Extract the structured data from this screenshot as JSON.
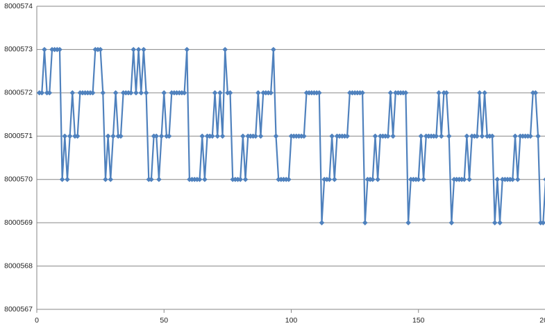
{
  "chart_data": {
    "type": "line",
    "x": [
      1,
      2,
      3,
      4,
      5,
      6,
      7,
      8,
      9,
      10,
      11,
      12,
      13,
      14,
      15,
      16,
      17,
      18,
      19,
      20,
      21,
      22,
      23,
      24,
      25,
      26,
      27,
      28,
      29,
      30,
      31,
      32,
      33,
      34,
      35,
      36,
      37,
      38,
      39,
      40,
      41,
      42,
      43,
      44,
      45,
      46,
      47,
      48,
      49,
      50,
      51,
      52,
      53,
      54,
      55,
      56,
      57,
      58,
      59,
      60,
      61,
      62,
      63,
      64,
      65,
      66,
      67,
      68,
      69,
      70,
      71,
      72,
      73,
      74,
      75,
      76,
      77,
      78,
      79,
      80,
      81,
      82,
      83,
      84,
      85,
      86,
      87,
      88,
      89,
      90,
      91,
      92,
      93,
      94,
      95,
      96,
      97,
      98,
      99,
      100,
      101,
      102,
      103,
      104,
      105,
      106,
      107,
      108,
      109,
      110,
      111,
      112,
      113,
      114,
      115,
      116,
      117,
      118,
      119,
      120,
      121,
      122,
      123,
      124,
      125,
      126,
      127,
      128,
      129,
      130,
      131,
      132,
      133,
      134,
      135,
      136,
      137,
      138,
      139,
      140,
      141,
      142,
      143,
      144,
      145,
      146,
      147,
      148,
      149,
      150,
      151,
      152,
      153,
      154,
      155,
      156,
      157,
      158,
      159,
      160,
      161,
      162,
      163,
      164,
      165,
      166,
      167,
      168,
      169,
      170,
      171,
      172,
      173,
      174,
      175,
      176,
      177,
      178,
      179,
      180,
      181,
      182,
      183,
      184,
      185,
      186,
      187,
      188,
      189,
      190,
      191,
      192,
      193,
      194,
      195,
      196,
      197,
      198,
      199,
      200
    ],
    "series": [
      {
        "color": "#4f81bd",
        "values": [
          8000572,
          8000572,
          8000573,
          8000572,
          8000572,
          8000573,
          8000573,
          8000573,
          8000573,
          8000570,
          8000571,
          8000570,
          8000571,
          8000572,
          8000571,
          8000571,
          8000572,
          8000572,
          8000572,
          8000572,
          8000572,
          8000572,
          8000573,
          8000573,
          8000573,
          8000572,
          8000570,
          8000571,
          8000570,
          8000571,
          8000572,
          8000571,
          8000571,
          8000572,
          8000572,
          8000572,
          8000572,
          8000573,
          8000572,
          8000573,
          8000572,
          8000573,
          8000572,
          8000570,
          8000570,
          8000571,
          8000571,
          8000570,
          8000571,
          8000572,
          8000571,
          8000571,
          8000572,
          8000572,
          8000572,
          8000572,
          8000572,
          8000572,
          8000573,
          8000570,
          8000570,
          8000570,
          8000570,
          8000570,
          8000571,
          8000570,
          8000571,
          8000571,
          8000571,
          8000572,
          8000571,
          8000572,
          8000571,
          8000573,
          8000572,
          8000572,
          8000570,
          8000570,
          8000570,
          8000570,
          8000571,
          8000570,
          8000571,
          8000571,
          8000571,
          8000571,
          8000572,
          8000571,
          8000572,
          8000572,
          8000572,
          8000572,
          8000573,
          8000571,
          8000570,
          8000570,
          8000570,
          8000570,
          8000570,
          8000571,
          8000571,
          8000571,
          8000571,
          8000571,
          8000571,
          8000572,
          8000572,
          8000572,
          8000572,
          8000572,
          8000572,
          8000569,
          8000570,
          8000570,
          8000570,
          8000571,
          8000570,
          8000571,
          8000571,
          8000571,
          8000571,
          8000571,
          8000572,
          8000572,
          8000572,
          8000572,
          8000572,
          8000572,
          8000569,
          8000570,
          8000570,
          8000570,
          8000571,
          8000570,
          8000571,
          8000571,
          8000571,
          8000571,
          8000572,
          8000571,
          8000572,
          8000572,
          8000572,
          8000572,
          8000572,
          8000569,
          8000570,
          8000570,
          8000570,
          8000570,
          8000571,
          8000570,
          8000571,
          8000571,
          8000571,
          8000571,
          8000571,
          8000572,
          8000571,
          8000572,
          8000572,
          8000571,
          8000569,
          8000570,
          8000570,
          8000570,
          8000570,
          8000570,
          8000571,
          8000570,
          8000571,
          8000571,
          8000571,
          8000572,
          8000571,
          8000572,
          8000571,
          8000571,
          8000571,
          8000569,
          8000570,
          8000569,
          8000570,
          8000570,
          8000570,
          8000570,
          8000570,
          8000571,
          8000570,
          8000571,
          8000571,
          8000571,
          8000571,
          8000571,
          8000572,
          8000572,
          8000571,
          8000569,
          8000569,
          8000570
        ]
      }
    ],
    "xlim": [
      0,
      200
    ],
    "xticks": [
      0,
      50,
      100,
      150,
      200
    ],
    "ylim": [
      8000567,
      8000574
    ],
    "yticks": [
      8000567,
      8000568,
      8000569,
      8000570,
      8000571,
      8000572,
      8000573,
      8000574
    ],
    "grid": true,
    "markers": "diamond"
  }
}
